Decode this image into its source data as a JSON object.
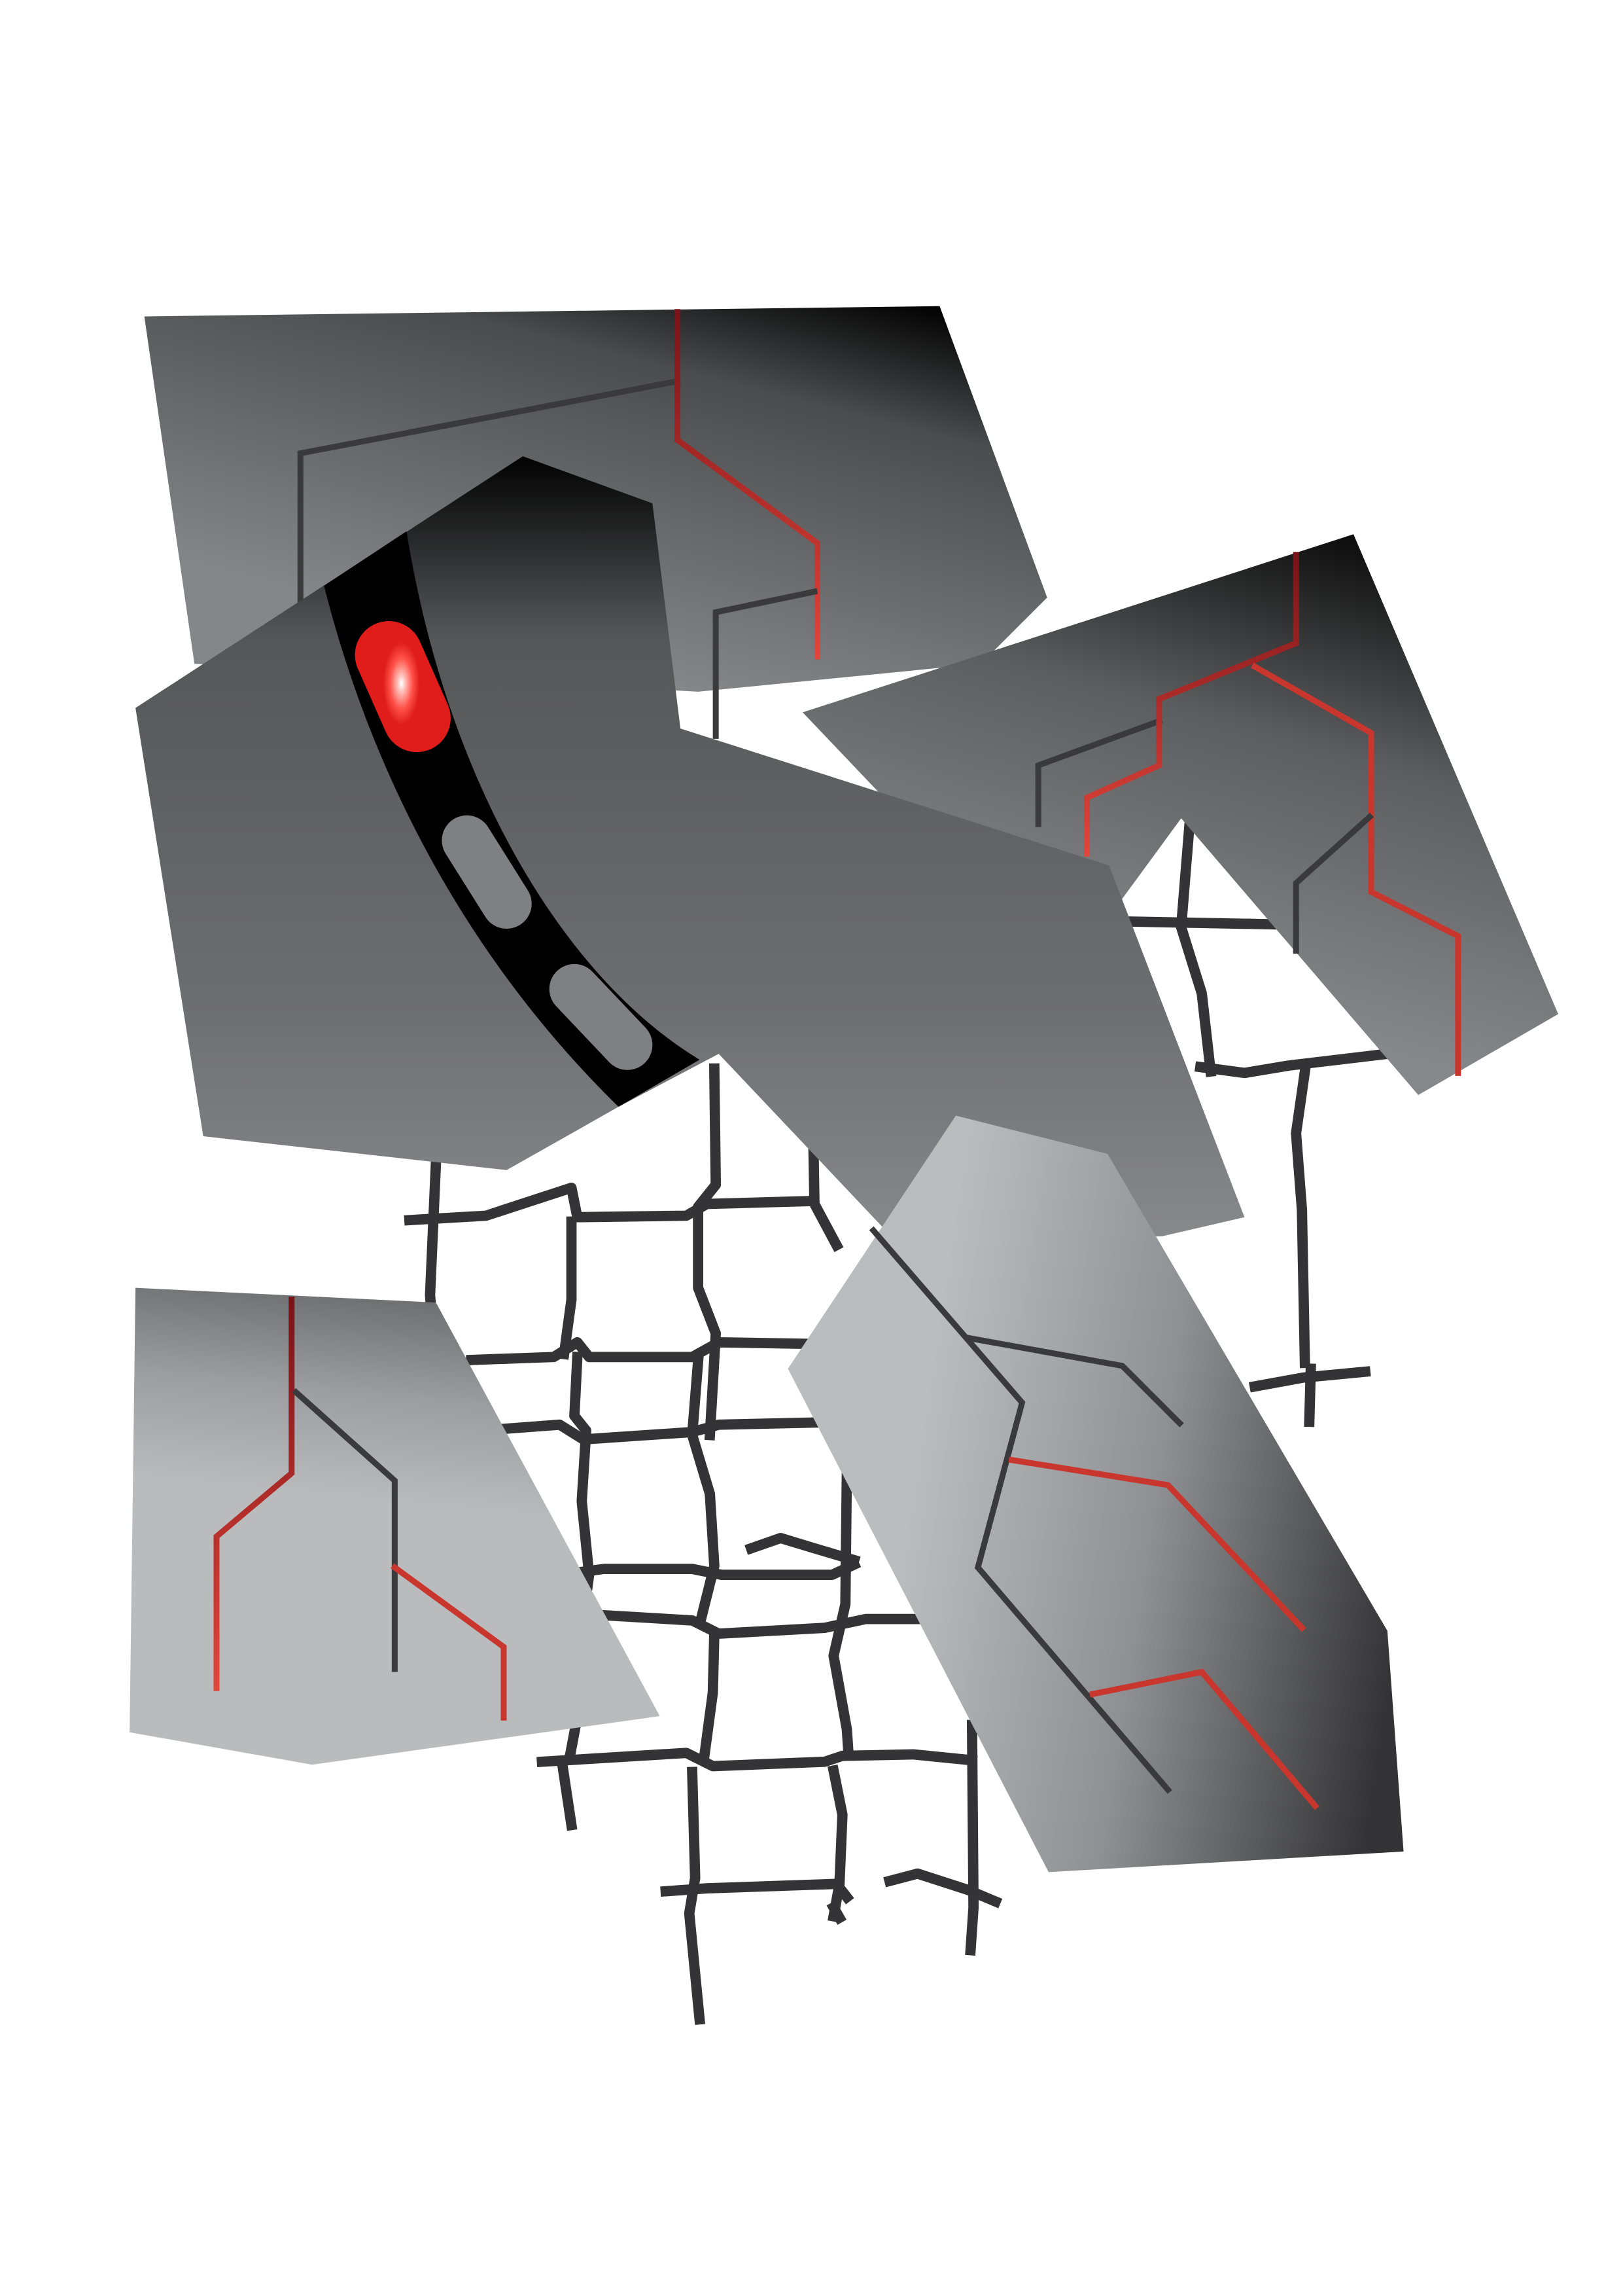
{
  "artwork": {
    "palette": {
      "background": "#ffffff",
      "grid_dark": "#343436",
      "panel_light": "#bbbcbe",
      "panel_mid": "#87888b",
      "panel_dark": "#4a4b4d",
      "panel_black": "#050505",
      "band_black": "#000000",
      "trace_gray": "#3a3a3c",
      "trace_red": "#e2453a",
      "trace_dark_red": "#7a1318",
      "light_red": "#ff3b35",
      "light_off": "#7f8083"
    },
    "icons": [
      "broken-grid-icon",
      "circuit-trace-icon",
      "indicator-light-icon"
    ]
  }
}
